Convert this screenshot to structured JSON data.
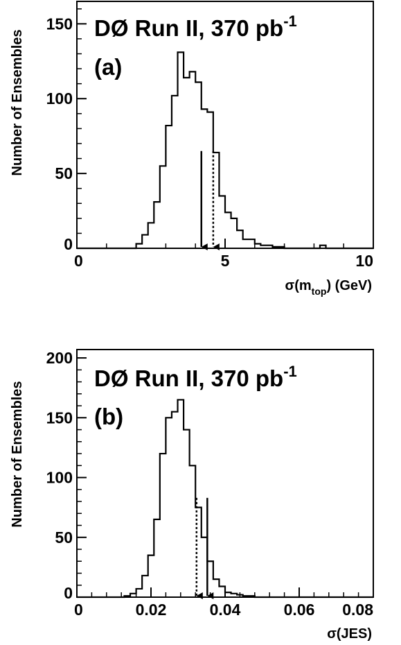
{
  "chart_data": [
    {
      "type": "histogram",
      "panel_label": "(a)",
      "title": "DØ Run II, 370 pb",
      "title_superscript": "-1",
      "xlabel": {
        "prefix": "σ(m",
        "subscript": "top",
        "suffix": ") (GeV)"
      },
      "ylabel": "Number of Ensembles",
      "xlim": [
        0,
        10
      ],
      "ylim": [
        0,
        165
      ],
      "x_ticks": [
        0,
        5,
        10
      ],
      "x_tick_labels": [
        "0",
        "5",
        "10"
      ],
      "y_ticks": [
        0,
        50,
        100,
        150
      ],
      "y_tick_labels": [
        "0",
        "50",
        "100",
        "150"
      ],
      "bins": {
        "start": 0,
        "width": 0.2,
        "counts": [
          0,
          0,
          0,
          0,
          0,
          0,
          0,
          0,
          0,
          0,
          3,
          9,
          17,
          31,
          55,
          82,
          102,
          131,
          114,
          118,
          111,
          93,
          91,
          64,
          35,
          24,
          20,
          12,
          6,
          6,
          3,
          2,
          2,
          1,
          1,
          0,
          0,
          0,
          0,
          0,
          0,
          2,
          0,
          0,
          0,
          0,
          0,
          0,
          0,
          0
        ]
      },
      "markers": [
        {
          "style": "solid",
          "x": 4.2,
          "height": 65,
          "arrow": true
        },
        {
          "style": "dotted",
          "x": 4.6,
          "height": 65,
          "arrow": true
        }
      ]
    },
    {
      "type": "histogram",
      "panel_label": "(b)",
      "title": "DØ Run II, 370 pb",
      "title_superscript": "-1",
      "xlabel": {
        "prefix": "σ(JES)",
        "subscript": "",
        "suffix": ""
      },
      "ylabel": "Number of Ensembles",
      "xlim": [
        0,
        0.08
      ],
      "ylim": [
        0,
        207
      ],
      "x_ticks": [
        0,
        0.02,
        0.04,
        0.06,
        0.08
      ],
      "x_tick_labels": [
        "0",
        "0.02",
        "0.04",
        "0.06",
        "0.08"
      ],
      "y_ticks": [
        0,
        50,
        100,
        150,
        200
      ],
      "y_tick_labels": [
        "0",
        "50",
        "100",
        "150",
        "200"
      ],
      "bins": {
        "start": 0,
        "width": 0.0016,
        "counts": [
          0,
          0,
          0,
          0,
          0,
          0,
          0,
          0,
          1,
          3,
          7,
          18,
          35,
          65,
          120,
          150,
          155,
          165,
          140,
          110,
          75,
          50,
          30,
          15,
          9,
          4,
          3,
          2,
          1,
          1,
          0,
          0,
          0,
          0,
          0,
          0,
          0,
          0,
          0,
          0,
          0,
          0,
          0,
          0,
          0,
          0,
          0,
          0,
          0,
          0
        ]
      },
      "markers": [
        {
          "style": "dotted",
          "x": 0.0323,
          "height": 83,
          "arrow": true
        },
        {
          "style": "solid",
          "x": 0.0352,
          "height": 83,
          "arrow": true
        }
      ]
    }
  ]
}
